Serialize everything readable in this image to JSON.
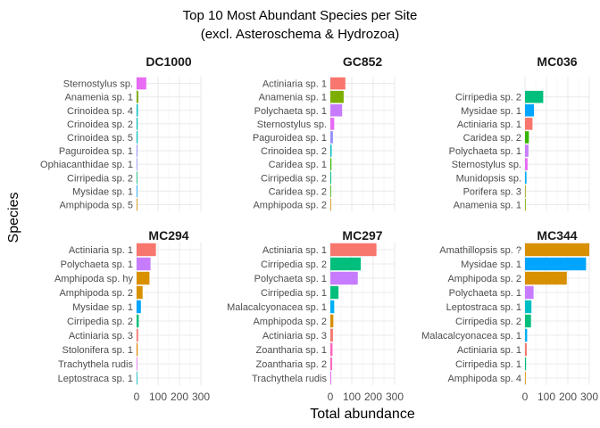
{
  "chart_data": {
    "type": "bar",
    "orientation": "horizontal",
    "title": "Top 10 Most Abundant Species per Site",
    "subtitle": "(excl. Asteroschema & Hydrozoa)",
    "xlabel": "Total abundance",
    "ylabel": "Species",
    "xlim": [
      0,
      300
    ],
    "xticks": [
      0,
      100,
      200,
      300
    ],
    "grid": true,
    "legend": "none",
    "colors": {
      "Actiniaria": "#F8766D",
      "Amphipoda": "#D89000",
      "Amathillopsis": "#D89000",
      "Porifera": "#A3A500",
      "Polychaeta": "#C77CFF",
      "Cirripedia": "#00BF7D",
      "Caridea": "#39B600",
      "Crinoidea": "#00BFC4",
      "Mysidae": "#00A5FF",
      "Paguroidea": "#9590FF",
      "Ophiacanthidae": "#9590FF",
      "Sternostylus": "#E76BF3",
      "Anamenia": "#7CAE00",
      "Zoantharia": "#FF62BC",
      "Malacalcyonacea": "#00B0F6",
      "Leptostraca": "#00BFC4",
      "Stolonifera": "#E58700",
      "Trachythela": "#E76BF3",
      "Munidopsis": "#00B0F6"
    },
    "facets": [
      {
        "site": "DC1000",
        "species": [
          "Sternostylus sp.",
          "Anamenia sp. 1",
          "Crinoidea sp. 4",
          "Crinoidea sp. 2",
          "Crinoidea sp. 5",
          "Paguroidea sp. 1",
          "Ophiacanthidae sp. 1",
          "Cirripedia sp. 2",
          "Mysidae sp. 1",
          "Amphipoda sp. 5"
        ],
        "values": [
          45,
          8,
          6,
          5,
          5,
          4,
          3,
          3,
          2,
          2
        ],
        "groups": [
          "Sternostylus",
          "Anamenia",
          "Crinoidea",
          "Crinoidea",
          "Crinoidea",
          "Paguroidea",
          "Ophiacanthidae",
          "Cirripedia",
          "Mysidae",
          "Amphipoda"
        ]
      },
      {
        "site": "GC852",
        "species": [
          "Actiniaria sp. 1",
          "Anamenia sp. 1",
          "Polychaeta sp. 1",
          "Sternostylus sp.",
          "Paguroidea sp. 1",
          "Crinoidea sp. 2",
          "Caridea sp. 1",
          "Cirripedia sp. 2",
          "Caridea sp. 2",
          "Amphipoda sp. 2"
        ],
        "values": [
          70,
          62,
          55,
          18,
          12,
          6,
          5,
          4,
          3,
          3
        ],
        "groups": [
          "Actiniaria",
          "Anamenia",
          "Polychaeta",
          "Sternostylus",
          "Paguroidea",
          "Crinoidea",
          "Caridea",
          "Cirripedia",
          "Caridea",
          "Amphipoda"
        ]
      },
      {
        "site": "MC036",
        "species": [
          "Cirripedia sp. 2",
          "Mysidae sp. 1",
          "Actiniaria sp. 1",
          "Caridea sp. 2",
          "Polychaeta sp. 1",
          "Sternostylus sp.",
          "Munidopsis sp.",
          "Porifera sp. 3",
          "Anamenia sp. 1"
        ],
        "values": [
          85,
          42,
          35,
          18,
          16,
          12,
          7,
          3,
          2
        ],
        "groups": [
          "Cirripedia",
          "Mysidae",
          "Actiniaria",
          "Caridea",
          "Polychaeta",
          "Sternostylus",
          "Munidopsis",
          "Porifera",
          "Anamenia"
        ]
      },
      {
        "site": "MC294",
        "species": [
          "Actiniaria sp. 1",
          "Polychaeta sp. 1",
          "Amphipoda sp. hy",
          "Amphipoda sp. 2",
          "Mysidae sp. 1",
          "Cirripedia sp. 2",
          "Actiniaria sp. 3",
          "Stolonifera sp. 1",
          "Trachythela rudis",
          "Leptostraca sp. 1"
        ],
        "values": [
          90,
          65,
          60,
          28,
          20,
          10,
          7,
          5,
          3,
          2
        ],
        "groups": [
          "Actiniaria",
          "Polychaeta",
          "Amphipoda",
          "Amphipoda",
          "Mysidae",
          "Cirripedia",
          "Actiniaria",
          "Stolonifera",
          "Trachythela",
          "Leptostraca"
        ]
      },
      {
        "site": "MC297",
        "species": [
          "Actiniaria sp. 1",
          "Cirripedia sp. 2",
          "Polychaeta sp. 1",
          "Cirripedia sp. 1",
          "Malacalcyonacea sp. 1",
          "Amphipoda sp. 2",
          "Actiniaria sp. 3",
          "Zoantharia sp. 1",
          "Zoantharia sp. 2",
          "Trachythela rudis"
        ],
        "values": [
          215,
          142,
          128,
          38,
          18,
          14,
          12,
          10,
          8,
          4
        ],
        "groups": [
          "Actiniaria",
          "Cirripedia",
          "Polychaeta",
          "Cirripedia",
          "Malacalcyonacea",
          "Amphipoda",
          "Actiniaria",
          "Zoantharia",
          "Zoantharia",
          "Trachythela"
        ]
      },
      {
        "site": "MC344",
        "species": [
          "Amathillopsis sp. ?",
          "Mysidae sp. 1",
          "Amphipoda sp. 2",
          "Polychaeta sp. 1",
          "Leptostraca sp. 1",
          "Cirripedia sp. 2",
          "Malacalcyonacea sp. 1",
          "Actiniaria sp. 1",
          "Cirripedia sp. 1",
          "Amphipoda sp. 4"
        ],
        "values": [
          305,
          285,
          195,
          40,
          30,
          28,
          10,
          8,
          5,
          3
        ],
        "groups": [
          "Amathillopsis",
          "Mysidae",
          "Amphipoda",
          "Polychaeta",
          "Leptostraca",
          "Cirripedia",
          "Malacalcyonacea",
          "Actiniaria",
          "Cirripedia",
          "Amphipoda"
        ]
      }
    ]
  }
}
